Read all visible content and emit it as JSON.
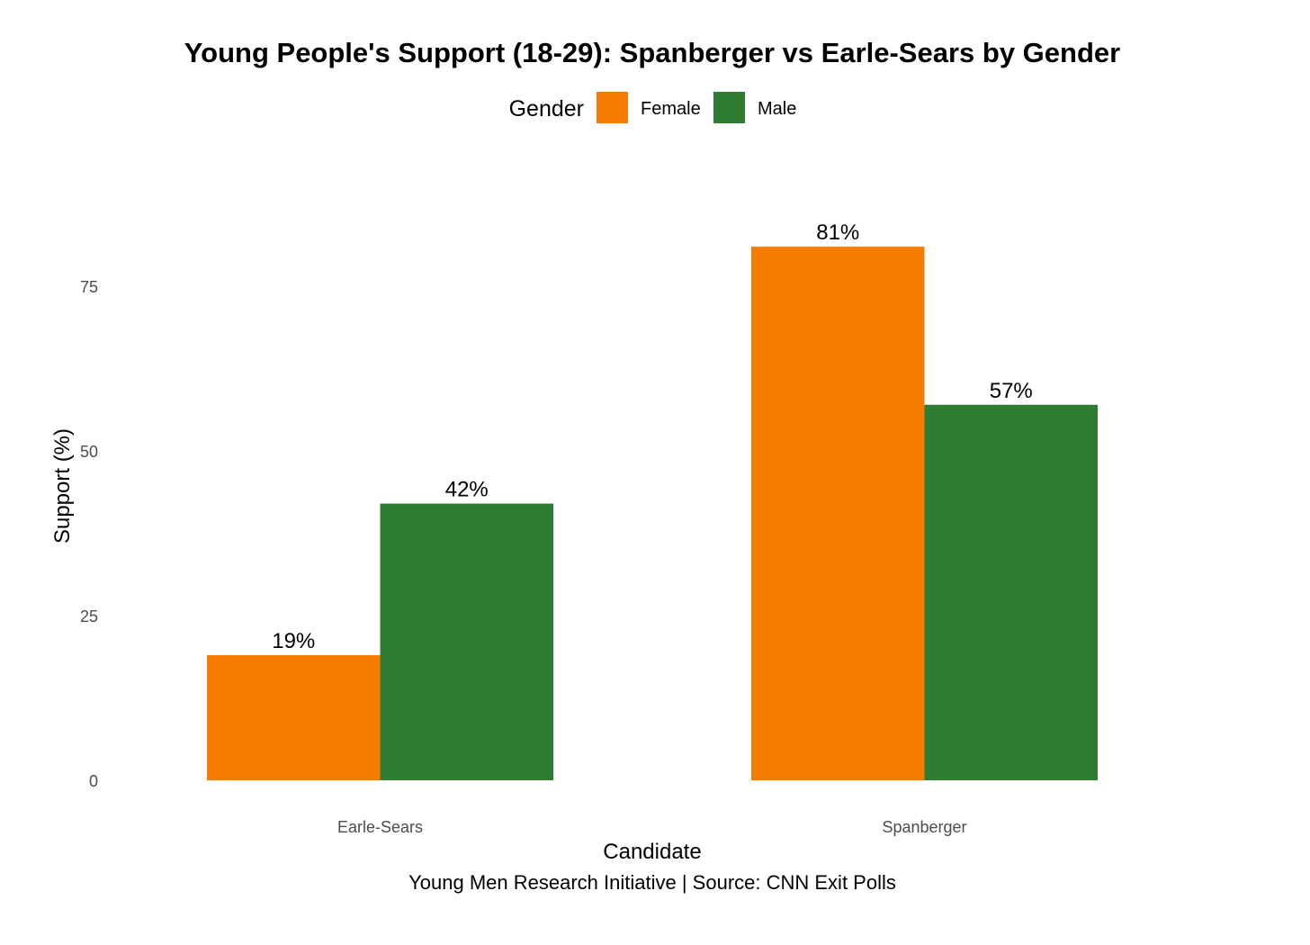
{
  "chart_data": {
    "type": "bar",
    "title": "Young People's Support (18-29): Spanberger vs Earle-Sears by Gender",
    "xlabel": "Candidate",
    "ylabel": "Support (%)",
    "caption": "Young Men Research Initiative | Source: CNN Exit Polls",
    "categories": [
      "Earle-Sears",
      "Spanberger"
    ],
    "series": [
      {
        "name": "Female",
        "color": "#F57C00",
        "values": [
          19,
          81
        ],
        "labels": [
          "19%",
          "81%"
        ]
      },
      {
        "name": "Male",
        "color": "#2E7D32",
        "values": [
          42,
          57
        ],
        "labels": [
          "42%",
          "57%"
        ]
      }
    ],
    "legend": {
      "title": "Gender",
      "position": "top"
    },
    "yticks": [
      0,
      25,
      50,
      75
    ],
    "ylim": [
      0,
      84.9
    ],
    "grid": false
  }
}
